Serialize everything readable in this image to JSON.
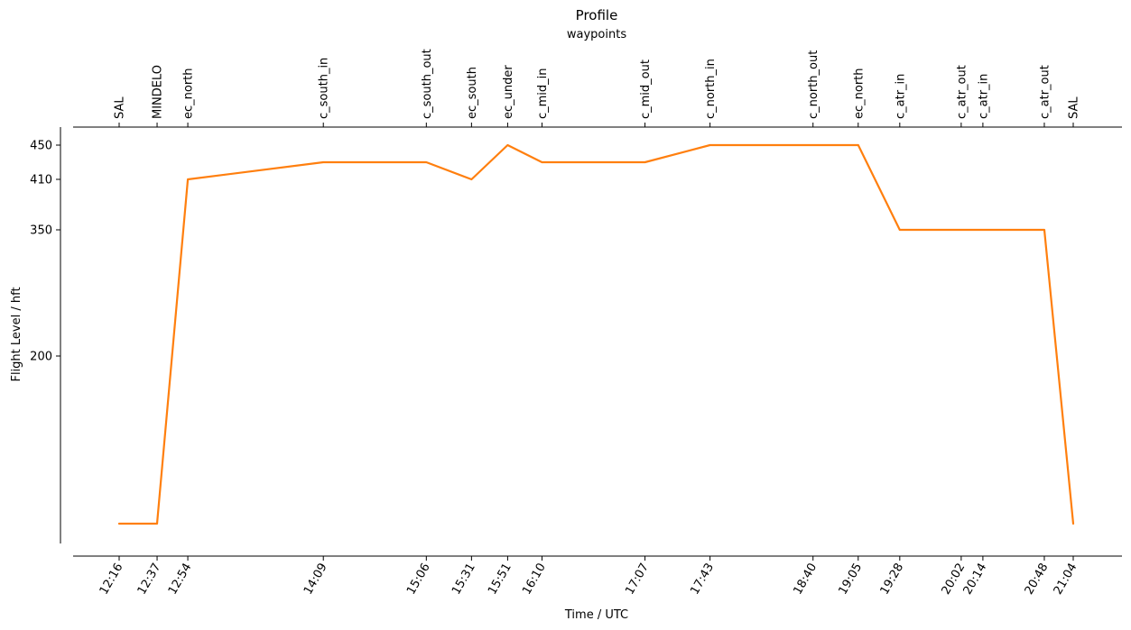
{
  "chart_data": {
    "type": "line",
    "title": "Profile",
    "top_axis_label": "waypoints",
    "xlabel": "Time / UTC",
    "ylabel": "Flight Level / hft",
    "waypoints": [
      {
        "name": "SAL",
        "time": "12:16",
        "minutes": 736
      },
      {
        "name": "MINDELO",
        "time": "12:37",
        "minutes": 757
      },
      {
        "name": "ec_north",
        "time": "12:54",
        "minutes": 774
      },
      {
        "name": "c_south_in",
        "time": "14:09",
        "minutes": 849
      },
      {
        "name": "c_south_out",
        "time": "15:06",
        "minutes": 906
      },
      {
        "name": "ec_south",
        "time": "15:31",
        "minutes": 931
      },
      {
        "name": "ec_under",
        "time": "15:51",
        "minutes": 951
      },
      {
        "name": "c_mid_in",
        "time": "16:10",
        "minutes": 970
      },
      {
        "name": "c_mid_out",
        "time": "17:07",
        "minutes": 1027
      },
      {
        "name": "c_north_in",
        "time": "17:43",
        "minutes": 1063
      },
      {
        "name": "c_north_out",
        "time": "18:40",
        "minutes": 1120
      },
      {
        "name": "ec_north",
        "time": "19:05",
        "minutes": 1145
      },
      {
        "name": "c_atr_in",
        "time": "19:28",
        "minutes": 1168
      },
      {
        "name": "c_atr_out",
        "time": "20:02",
        "minutes": 1202
      },
      {
        "name": "c_atr_in",
        "time": "20:14",
        "minutes": 1214
      },
      {
        "name": "c_atr_out",
        "time": "20:48",
        "minutes": 1248
      },
      {
        "name": "SAL",
        "time": "21:04",
        "minutes": 1264
      }
    ],
    "y_ticks": [
      200,
      350,
      410,
      450
    ],
    "series": [
      {
        "color": "#ff7f0e",
        "points": [
          {
            "minutes": 736,
            "fl": 0
          },
          {
            "minutes": 757,
            "fl": 0
          },
          {
            "minutes": 774,
            "fl": 410
          },
          {
            "minutes": 849,
            "fl": 430
          },
          {
            "minutes": 906,
            "fl": 430
          },
          {
            "minutes": 931,
            "fl": 410
          },
          {
            "minutes": 951,
            "fl": 450
          },
          {
            "minutes": 970,
            "fl": 430
          },
          {
            "minutes": 1027,
            "fl": 430
          },
          {
            "minutes": 1063,
            "fl": 450
          },
          {
            "minutes": 1120,
            "fl": 450
          },
          {
            "minutes": 1145,
            "fl": 450
          },
          {
            "minutes": 1168,
            "fl": 350
          },
          {
            "minutes": 1202,
            "fl": 350
          },
          {
            "minutes": 1214,
            "fl": 350
          },
          {
            "minutes": 1248,
            "fl": 350
          },
          {
            "minutes": 1264,
            "fl": 0
          }
        ]
      }
    ],
    "grid": false
  }
}
